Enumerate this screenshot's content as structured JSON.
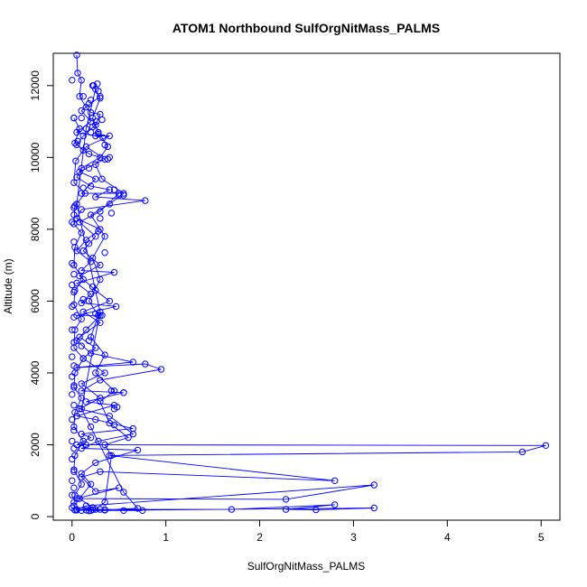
{
  "chart_data": {
    "type": "line",
    "title": "ATOM1 Northbound SulfOrgNitMass_PALMS",
    "xlabel": "SulfOrgNitMass_PALMS",
    "ylabel": "Altitude (m)",
    "xlim": [
      -0.2,
      5.2
    ],
    "ylim": [
      -100,
      12900
    ],
    "x_ticks": [
      0,
      1,
      2,
      3,
      4,
      5
    ],
    "y_ticks": [
      0,
      2000,
      4000,
      6000,
      8000,
      10000,
      12000
    ],
    "grid": false,
    "color": "#0000ff",
    "series": [
      {
        "points": [
          [
            0.05,
            12850
          ],
          [
            0.06,
            12350
          ],
          [
            0.1,
            12150
          ],
          [
            0.08,
            11700
          ],
          [
            0.15,
            11400
          ],
          [
            0.2,
            11250
          ],
          [
            0.3,
            11200
          ],
          [
            0.25,
            10900
          ],
          [
            0.12,
            10600
          ],
          [
            0.05,
            10350
          ],
          [
            0.18,
            10100
          ],
          [
            0.3,
            10000
          ],
          [
            0.1,
            9700
          ],
          [
            0.05,
            9450
          ],
          [
            0.2,
            9200
          ],
          [
            0.4,
            9100
          ],
          [
            0.25,
            8900
          ],
          [
            0.78,
            8800
          ],
          [
            0.1,
            8550
          ],
          [
            0.05,
            8300
          ],
          [
            0.3,
            8000
          ],
          [
            0.15,
            7700
          ],
          [
            0.05,
            7400
          ],
          [
            0.2,
            7100
          ],
          [
            0.1,
            6850
          ],
          [
            0.45,
            6800
          ],
          [
            0.05,
            6500
          ],
          [
            0.2,
            6200
          ],
          [
            0.1,
            5950
          ],
          [
            0.47,
            5850
          ],
          [
            0.05,
            5600
          ],
          [
            0.3,
            5600
          ],
          [
            0.15,
            5200
          ],
          [
            0.05,
            4900
          ],
          [
            0.2,
            4550
          ],
          [
            0.65,
            4300
          ],
          [
            0.05,
            4150
          ],
          [
            0.78,
            4250
          ],
          [
            0.95,
            4100
          ],
          [
            0.3,
            3800
          ],
          [
            0.1,
            3500
          ],
          [
            0.55,
            3450
          ],
          [
            0.15,
            3200
          ],
          [
            0.45,
            3100
          ],
          [
            0.05,
            2800
          ],
          [
            0.25,
            2700
          ],
          [
            0.65,
            2450
          ],
          [
            0.1,
            2300
          ],
          [
            0.2,
            2200
          ],
          [
            0.05,
            2000
          ],
          [
            5.05,
            1980
          ],
          [
            4.8,
            1800
          ],
          [
            0.4,
            1700
          ],
          [
            2.8,
            1000
          ],
          [
            0.3,
            1250
          ],
          [
            0.1,
            1100
          ],
          [
            0.25,
            700
          ],
          [
            0.5,
            800
          ],
          [
            0.05,
            500
          ],
          [
            2.28,
            480
          ],
          [
            3.22,
            880
          ],
          [
            0.15,
            300
          ],
          [
            0.05,
            200
          ],
          [
            1.7,
            200
          ],
          [
            2.8,
            330
          ],
          [
            2.28,
            200
          ],
          [
            2.6,
            190
          ],
          [
            3.22,
            240
          ],
          [
            0.2,
            170
          ],
          [
            0.55,
            170
          ],
          [
            0.75,
            170
          ],
          [
            0.03,
            180
          ],
          [
            0.35,
            190
          ],
          [
            0.7,
            230
          ],
          [
            0.55,
            680
          ],
          [
            0.1,
            3000
          ],
          [
            0.3,
            5700
          ],
          [
            0.05,
            8700
          ],
          [
            0.15,
            10800
          ],
          [
            0.25,
            11900
          ]
        ]
      },
      {
        "points": [
          [
            0.02,
            11100
          ],
          [
            0.08,
            10800
          ],
          [
            0.03,
            10400
          ],
          [
            0.12,
            10200
          ],
          [
            0.04,
            9900
          ],
          [
            0.02,
            9300
          ],
          [
            0.14,
            9000
          ],
          [
            0.03,
            8650
          ],
          [
            0.02,
            8150
          ],
          [
            0.1,
            7900
          ],
          [
            0.03,
            7500
          ],
          [
            0.02,
            7000
          ],
          [
            0.12,
            6600
          ],
          [
            0.03,
            6300
          ],
          [
            0.02,
            5900
          ],
          [
            0.1,
            5500
          ],
          [
            0.03,
            5200
          ],
          [
            0.02,
            4700
          ],
          [
            0.12,
            4400
          ],
          [
            0.03,
            4000
          ],
          [
            0.02,
            3600
          ],
          [
            0.1,
            3300
          ],
          [
            0.03,
            2900
          ],
          [
            0.02,
            2500
          ],
          [
            0.12,
            2100
          ],
          [
            0.03,
            1700
          ],
          [
            0.02,
            1300
          ],
          [
            0.1,
            900
          ],
          [
            0.03,
            600
          ],
          [
            0.02,
            300
          ],
          [
            0.05,
            190
          ],
          [
            0.15,
            180
          ],
          [
            0.25,
            200
          ],
          [
            0.35,
            400
          ],
          [
            0.42,
            1700
          ],
          [
            0.35,
            2000
          ],
          [
            0.6,
            2200
          ],
          [
            0.4,
            2600
          ],
          [
            0.3,
            3200
          ],
          [
            0.45,
            3500
          ],
          [
            0.25,
            4000
          ],
          [
            0.35,
            4500
          ],
          [
            0.2,
            5000
          ],
          [
            0.28,
            5600
          ],
          [
            0.18,
            6000
          ],
          [
            0.3,
            6600
          ],
          [
            0.22,
            7200
          ],
          [
            0.35,
            7800
          ],
          [
            0.2,
            8400
          ],
          [
            0.4,
            8700
          ],
          [
            0.55,
            9000
          ],
          [
            0.32,
            9400
          ],
          [
            0.25,
            9800
          ],
          [
            0.38,
            10300
          ],
          [
            0.28,
            10700
          ],
          [
            0.22,
            11100
          ],
          [
            0.3,
            11650
          ],
          [
            0.23,
            12000
          ]
        ]
      },
      {
        "points": [
          [
            0.3,
            11700
          ],
          [
            0.1,
            11300
          ],
          [
            0.2,
            11000
          ],
          [
            0.05,
            10700
          ],
          [
            0.25,
            10600
          ],
          [
            0.4,
            10600
          ],
          [
            0.15,
            10300
          ],
          [
            0.35,
            9950
          ],
          [
            0.08,
            9600
          ],
          [
            0.25,
            9400
          ],
          [
            0.1,
            9000
          ],
          [
            0.5,
            9000
          ],
          [
            0.3,
            8500
          ],
          [
            0.08,
            8200
          ],
          [
            0.25,
            7800
          ],
          [
            0.12,
            7400
          ],
          [
            0.3,
            7000
          ],
          [
            0.08,
            6700
          ],
          [
            0.25,
            6300
          ],
          [
            0.4,
            6000
          ],
          [
            0.12,
            5700
          ],
          [
            0.3,
            5400
          ],
          [
            0.08,
            5000
          ],
          [
            0.25,
            4700
          ],
          [
            0.12,
            4400
          ],
          [
            0.35,
            4000
          ],
          [
            0.1,
            3700
          ],
          [
            0.3,
            3300
          ],
          [
            0.08,
            3000
          ],
          [
            0.4,
            2800
          ],
          [
            0.65,
            2300
          ],
          [
            0.28,
            2100
          ],
          [
            0.1,
            1900
          ],
          [
            0.7,
            1850
          ],
          [
            0.25,
            1500
          ],
          [
            0.1,
            1200
          ],
          [
            0.2,
            900
          ],
          [
            0.08,
            500
          ],
          [
            0.22,
            250
          ]
        ]
      }
    ],
    "scatter_only": [
      [
        0.0,
        12150
      ],
      [
        0.02,
        11100
      ],
      [
        0.2,
        11600
      ],
      [
        0.27,
        12050
      ],
      [
        0.22,
        12000
      ],
      [
        0.28,
        11850
      ],
      [
        0.12,
        11700
      ],
      [
        0.18,
        11500
      ],
      [
        0.33,
        10550
      ],
      [
        0.28,
        10650
      ],
      [
        0.2,
        10700
      ],
      [
        0.22,
        10850
      ],
      [
        0.4,
        10000
      ],
      [
        0.38,
        9950
      ],
      [
        0.45,
        9100
      ],
      [
        0.55,
        8950
      ],
      [
        0.5,
        8950
      ],
      [
        0.02,
        8600
      ],
      [
        0.02,
        8400
      ],
      [
        0.0,
        8200
      ],
      [
        0.02,
        7650
      ],
      [
        0.0,
        7050
      ],
      [
        0.02,
        6750
      ],
      [
        0.0,
        6450
      ],
      [
        0.02,
        6250
      ],
      [
        0.0,
        5850
      ],
      [
        0.02,
        5550
      ],
      [
        0.0,
        5200
      ],
      [
        0.02,
        4850
      ],
      [
        0.0,
        4450
      ],
      [
        0.02,
        4200
      ],
      [
        0.0,
        3900
      ],
      [
        0.02,
        3650
      ],
      [
        0.0,
        3400
      ],
      [
        0.02,
        3100
      ],
      [
        0.0,
        2700
      ],
      [
        0.02,
        2400
      ],
      [
        0.0,
        2100
      ],
      [
        0.02,
        1900
      ],
      [
        0.0,
        1600
      ],
      [
        0.02,
        1250
      ],
      [
        0.0,
        1000
      ],
      [
        0.02,
        800
      ],
      [
        0.0,
        600
      ],
      [
        0.02,
        400
      ],
      [
        0.0,
        250
      ],
      [
        0.05,
        180
      ],
      [
        0.1,
        170
      ],
      [
        0.18,
        160
      ],
      [
        0.22,
        190
      ],
      [
        0.3,
        200
      ],
      [
        0.35,
        180
      ],
      [
        0.15,
        2000
      ],
      [
        0.2,
        2500
      ],
      [
        0.45,
        2550
      ],
      [
        0.45,
        3000
      ],
      [
        0.42,
        3500
      ],
      [
        0.48,
        3050
      ],
      [
        0.55,
        3450
      ],
      [
        0.1,
        4750
      ],
      [
        0.18,
        4900
      ],
      [
        0.32,
        5600
      ],
      [
        0.25,
        5650
      ],
      [
        0.12,
        6050
      ],
      [
        0.22,
        6400
      ],
      [
        0.35,
        7350
      ],
      [
        0.18,
        7600
      ],
      [
        0.28,
        7950
      ],
      [
        0.42,
        8450
      ],
      [
        0.3,
        8300
      ],
      [
        0.12,
        9150
      ],
      [
        0.18,
        9700
      ],
      [
        0.35,
        10350
      ],
      [
        0.06,
        10450
      ],
      [
        0.1,
        11100
      ],
      [
        0.26,
        11000
      ],
      [
        0.32,
        11050
      ]
    ]
  }
}
